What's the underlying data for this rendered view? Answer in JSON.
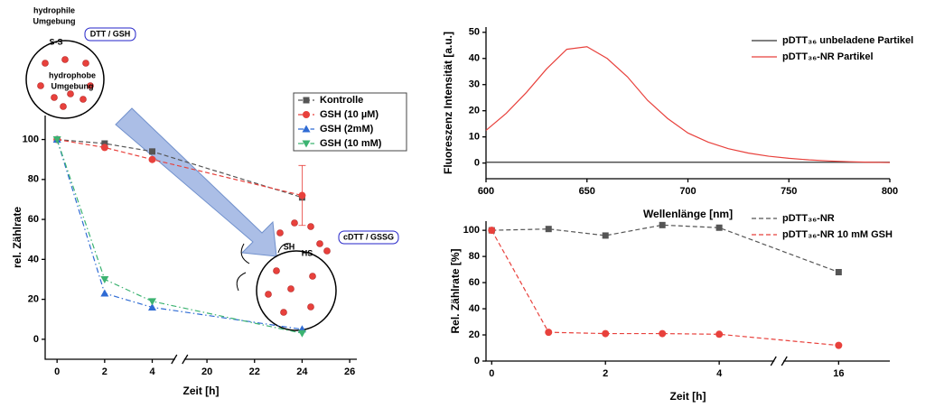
{
  "chart_data": [
    {
      "type": "line",
      "xlabel": "Zeit [h]",
      "ylabel": "rel. Zählrate",
      "x": [
        0,
        2,
        4,
        24
      ],
      "xlim": [
        -0.5,
        26.3
      ],
      "xticks": [
        0,
        2,
        4,
        20,
        22,
        24,
        26
      ],
      "xbreak": [
        5,
        19
      ],
      "ylim": [
        -10,
        112
      ],
      "yticks": [
        0,
        20,
        40,
        60,
        80,
        100
      ],
      "legend": "upper right",
      "series": [
        {
          "name": "Kontrolle",
          "color": "#555555",
          "marker": "square",
          "dash": "dashed",
          "values": [
            100,
            98,
            94,
            71
          ]
        },
        {
          "name": "GSH (10 µM)",
          "color": "#e8413c",
          "marker": "circle",
          "dash": "dashed",
          "values": [
            100,
            96,
            90,
            72
          ],
          "errors": [
            null,
            null,
            null,
            15
          ]
        },
        {
          "name": "GSH (2mM)",
          "color": "#2f6bd4",
          "marker": "triangle",
          "dash": "dashdot",
          "values": [
            100,
            23,
            16,
            5
          ]
        },
        {
          "name": "GSH (10 mM)",
          "color": "#3cb371",
          "marker": "triangle-down",
          "dash": "dashdot",
          "values": [
            100,
            30,
            19,
            3
          ]
        }
      ],
      "annotations": [
        "hydrophile",
        "Umgebung",
        "S-S",
        "DTT / GSH",
        "hydrophobe",
        "Umgebung",
        "cDTT / GSSG",
        "SH",
        "HS"
      ]
    },
    {
      "type": "line",
      "xlabel": "Wellenlänge [nm]",
      "ylabel": "Fluoreszenz Intensität [a.u.]",
      "x": [
        600,
        610,
        620,
        630,
        640,
        650,
        660,
        670,
        680,
        690,
        700,
        710,
        720,
        730,
        740,
        750,
        760,
        770,
        780,
        790,
        800
      ],
      "xlim": [
        600,
        800
      ],
      "xticks": [
        600,
        650,
        700,
        750,
        800
      ],
      "ylim": [
        -6,
        52
      ],
      "yticks": [
        0,
        10,
        20,
        30,
        40,
        50
      ],
      "legend": "upper right",
      "series": [
        {
          "name": "pDTT₃₆ unbeladene Partikel",
          "color": "#333333",
          "marker": "none",
          "dash": "solid",
          "values": [
            0.3,
            0.3,
            0.3,
            0.3,
            0.3,
            0.3,
            0.3,
            0.3,
            0.3,
            0.3,
            0.3,
            0.3,
            0.3,
            0.3,
            0.3,
            0.3,
            0.3,
            0.3,
            0.3,
            0.3,
            0.3
          ]
        },
        {
          "name": "pDTT₃₆-NR Partikel",
          "color": "#e8413c",
          "marker": "none",
          "dash": "solid",
          "values": [
            12.5,
            19,
            27,
            36,
            43.5,
            44.5,
            40,
            33,
            24,
            17,
            11.5,
            8,
            5.5,
            3.8,
            2.6,
            1.8,
            1.2,
            0.8,
            0.5,
            0.3,
            0.2
          ]
        }
      ]
    },
    {
      "type": "line",
      "xlabel": "Zeit [h]",
      "ylabel": "Rel. Zählrate [%]",
      "x": [
        0,
        1,
        2,
        3,
        4,
        16
      ],
      "xlim": [
        -0.1,
        16.9
      ],
      "xticks": [
        0,
        2,
        4,
        16
      ],
      "xbreak": [
        5,
        15
      ],
      "ylim": [
        0,
        107
      ],
      "yticks": [
        0,
        20,
        40,
        60,
        80,
        100
      ],
      "legend": "upper right",
      "series": [
        {
          "name": "pDTT₃₆-NR",
          "color": "#555555",
          "marker": "square",
          "dash": "dashed",
          "values": [
            100,
            101,
            96,
            104,
            102,
            68
          ]
        },
        {
          "name": "pDTT₃₆-NR 10 mM GSH",
          "color": "#e8413c",
          "marker": "circle",
          "dash": "dashed",
          "values": [
            100,
            22,
            21,
            21,
            20.5,
            12
          ]
        }
      ]
    }
  ]
}
